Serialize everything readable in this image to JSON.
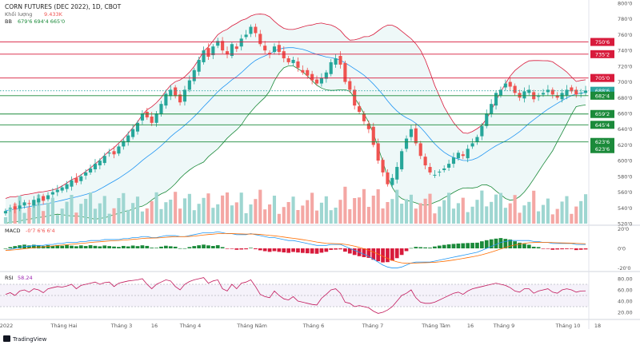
{
  "header": {
    "symbol": "CORN FUTURES (DEC 2022), 1D, CBOT",
    "volume_label": "Khối lượng",
    "volume_value": "9.433K",
    "bb_label": "BB",
    "bb_values": "679'6  694'4  665'0"
  },
  "macd": {
    "label": "MACD",
    "values": "-0'7  6'6  6'4"
  },
  "rsi": {
    "label": "RSI",
    "value": "58.24"
  },
  "price_axis": {
    "ticks": [
      "800'0",
      "780'0",
      "760'0",
      "740'0",
      "720'0",
      "700'0",
      "680'0",
      "660'0",
      "640'0",
      "620'0",
      "600'0",
      "580'0",
      "560'0",
      "540'0",
      "520'0"
    ]
  },
  "price_levels": [
    {
      "label": "750'6",
      "value": 750.75,
      "color": "#d81b3c"
    },
    {
      "label": "735'2",
      "value": 735.25,
      "color": "#d81b3c"
    },
    {
      "label": "705'0",
      "value": 705.0,
      "color": "#d81b3c"
    },
    {
      "label": "688'6",
      "value": 688.75,
      "color": "#2ca5a0",
      "dotted": true
    },
    {
      "label": "682'4",
      "value": 682.5,
      "color": "#1b8a3a"
    },
    {
      "label": "659'2",
      "value": 659.25,
      "color": "#1b8a3a"
    },
    {
      "label": "645'4",
      "value": 645.5,
      "color": "#1b8a3a"
    },
    {
      "label": "623'6",
      "value": 623.75,
      "color": "#1b8a3a"
    },
    {
      "label": "623'6",
      "value": 623.75,
      "color": "#1b8a3a",
      "offset": true
    }
  ],
  "macd_axis": {
    "ticks": [
      "20'0",
      "0'0",
      "-20'0"
    ]
  },
  "rsi_axis": {
    "ticks": [
      "80.00",
      "60.00",
      "40.00",
      "20.00"
    ]
  },
  "time_axis": {
    "labels": [
      "2022",
      "Tháng Hai",
      "Tháng 3",
      "16",
      "Tháng 4",
      "Tháng Năm",
      "Tháng 6",
      "Tháng 7",
      "Tháng Tám",
      "16",
      "Tháng 9",
      "Tháng 10",
      "18"
    ]
  },
  "footer": {
    "brand": "TradingView"
  },
  "colors": {
    "up": "#26a69a",
    "down": "#ef5350",
    "bb": "#d81b3c",
    "bbLow": "#1b8a3a",
    "basis": "#2196f3"
  },
  "chart_data": {
    "type": "line",
    "title": "CORN FUTURES (DEC 2022), 1D, CBOT",
    "ylim": [
      520,
      800
    ],
    "close": [
      536,
      540,
      538,
      543,
      547,
      545,
      550,
      552,
      549,
      556,
      560,
      563,
      566,
      570,
      575,
      572,
      580,
      585,
      590,
      596,
      600,
      606,
      610,
      608,
      618,
      625,
      632,
      640,
      648,
      660,
      655,
      648,
      660,
      672,
      685,
      690,
      682,
      674,
      690,
      702,
      715,
      728,
      740,
      732,
      745,
      752,
      740,
      735,
      748,
      742,
      755,
      760,
      770,
      762,
      748,
      740,
      735,
      745,
      738,
      730,
      725,
      728,
      718,
      712,
      708,
      702,
      698,
      705,
      712,
      725,
      730,
      722,
      700,
      690,
      670,
      662,
      650,
      640,
      620,
      600,
      585,
      570,
      578,
      592,
      612,
      628,
      640,
      622,
      606,
      594,
      585,
      582,
      586,
      590,
      596,
      604,
      610,
      606,
      615,
      622,
      630,
      644,
      660,
      672,
      686,
      690,
      698,
      694,
      686,
      680,
      688,
      690,
      678,
      682,
      686,
      690,
      684,
      680,
      686,
      690,
      688,
      684,
      686,
      689
    ],
    "rsi": [
      52,
      55,
      50,
      58,
      60,
      56,
      62,
      60,
      55,
      62,
      64,
      66,
      65,
      67,
      70,
      62,
      68,
      70,
      72,
      74,
      70,
      73,
      74,
      66,
      72,
      74,
      76,
      77,
      78,
      80,
      70,
      62,
      70,
      74,
      78,
      76,
      66,
      60,
      70,
      75,
      78,
      80,
      82,
      72,
      76,
      78,
      62,
      58,
      70,
      62,
      72,
      74,
      78,
      66,
      52,
      48,
      46,
      58,
      50,
      44,
      42,
      48,
      40,
      38,
      36,
      34,
      33,
      45,
      52,
      60,
      62,
      54,
      38,
      36,
      30,
      32,
      30,
      28,
      22,
      18,
      20,
      24,
      30,
      40,
      50,
      54,
      60,
      46,
      38,
      36,
      36,
      38,
      42,
      46,
      50,
      54,
      56,
      52,
      58,
      62,
      64,
      66,
      68,
      70,
      72,
      70,
      68,
      64,
      58,
      56,
      62,
      62,
      54,
      58,
      60,
      62,
      56,
      54,
      60,
      62,
      60,
      56,
      58,
      58.24
    ],
    "macd": [
      -2,
      -1,
      0,
      1,
      2,
      2,
      3,
      3,
      3,
      4,
      4,
      5,
      5,
      6,
      6,
      6,
      7,
      7,
      8,
      8,
      8,
      9,
      9,
      9,
      9,
      10,
      10,
      11,
      11,
      12,
      12,
      11,
      11,
      12,
      13,
      13,
      13,
      12,
      12,
      13,
      14,
      15,
      16,
      16,
      16,
      17,
      16,
      15,
      15,
      14,
      14,
      14,
      15,
      14,
      13,
      12,
      11,
      11,
      10,
      9,
      8,
      8,
      7,
      6,
      5,
      4,
      3,
      3,
      3,
      4,
      4,
      4,
      2,
      0,
      -2,
      -4,
      -6,
      -8,
      -11,
      -14,
      -17,
      -19,
      -20,
      -20,
      -19,
      -17,
      -15,
      -14,
      -14,
      -14,
      -14,
      -13,
      -12,
      -11,
      -10,
      -9,
      -8,
      -7,
      -6,
      -5,
      -4,
      -2,
      0,
      2,
      4,
      6,
      7,
      8,
      8,
      8,
      8,
      8,
      7,
      7,
      6,
      6,
      5,
      5,
      5,
      5,
      5,
      4,
      4,
      4
    ]
  }
}
